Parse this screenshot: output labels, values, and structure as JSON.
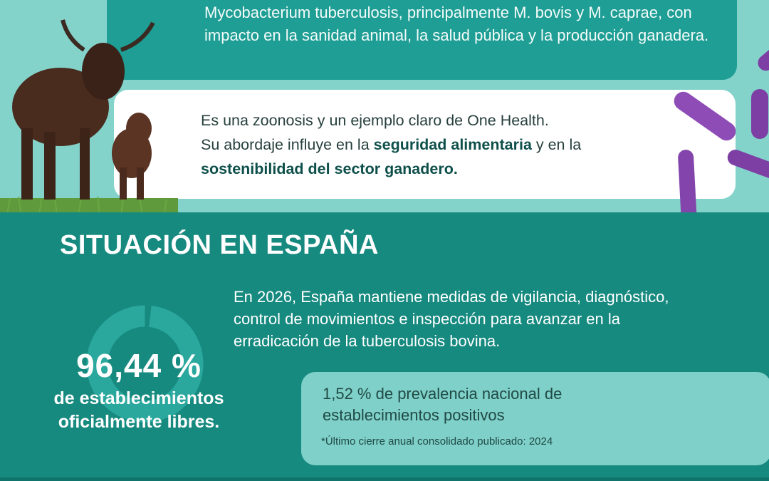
{
  "intro": {
    "card_text": "Mycobacterium tuberculosis, principalmente M. bovis y M. caprae, con impacto en la sanidad animal, la salud pública y la producción ganadera."
  },
  "one_health": {
    "line1": "Es una zoonosis y un ejemplo claro de One Health.",
    "line2_pre": "Su abordaje influye en la ",
    "bold1": "seguridad alimentaria",
    "line2_mid": " y en la",
    "bold2": "sostenibilidad del sector ganadero."
  },
  "situation": {
    "title": "SITUACIÓN EN ESPAÑA",
    "text": "En 2026, España mantiene medidas de vigilancia, diagnóstico, control de movimientos e inspección para avanzar en la erradicación de la tuberculosis bovina."
  },
  "stat": {
    "value": "96,44 %",
    "label_line1": "de establecimientos",
    "label_line2": "oficialmente libres.",
    "ring_fraction": 0.9644
  },
  "prevalence": {
    "text": "1,52 % de prevalencia nacional de establecimientos positivos",
    "note": "*Último cierre anual consolidado publicado: 2024"
  },
  "colors": {
    "background": "#84d3cb",
    "card_teal": "#1e9e94",
    "section_teal": "#178a80",
    "prevalence_card": "#7ed0c8"
  },
  "images": [
    "cattle-image",
    "bacteria-image"
  ]
}
